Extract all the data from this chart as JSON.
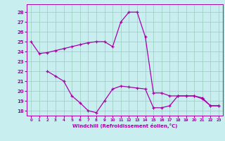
{
  "xlabel": "Windchill (Refroidissement éolien,°C)",
  "xlim": [
    -0.5,
    23.5
  ],
  "ylim": [
    17.5,
    28.8
  ],
  "yticks": [
    18,
    19,
    20,
    21,
    22,
    23,
    24,
    25,
    26,
    27,
    28
  ],
  "xticks": [
    0,
    1,
    2,
    3,
    4,
    5,
    6,
    7,
    8,
    9,
    10,
    11,
    12,
    13,
    14,
    15,
    16,
    17,
    18,
    19,
    20,
    21,
    22,
    23
  ],
  "background_color": "#c8eef0",
  "line_color": "#aa00aa",
  "grid_color": "#99ccbb",
  "series1_x": [
    0,
    1,
    2,
    3,
    4,
    5,
    6,
    7,
    8,
    9,
    10,
    11,
    12,
    13,
    14,
    15,
    16,
    17,
    18,
    19,
    20,
    21,
    22,
    23
  ],
  "series1_y": [
    25.0,
    23.8,
    23.9,
    24.1,
    24.3,
    24.5,
    24.7,
    24.9,
    25.0,
    25.0,
    24.5,
    27.0,
    28.0,
    28.0,
    25.5,
    19.8,
    19.8,
    19.5,
    19.5,
    19.5,
    19.5,
    19.2,
    18.5,
    18.5
  ],
  "series2_x": [
    2,
    3,
    4,
    5,
    6,
    7,
    8,
    9,
    10,
    11,
    12,
    13,
    14,
    15,
    16,
    17,
    18,
    19,
    20,
    21,
    22,
    23
  ],
  "series2_y": [
    22.0,
    21.5,
    21.0,
    19.5,
    18.8,
    18.0,
    17.8,
    19.0,
    20.2,
    20.5,
    20.4,
    20.3,
    20.2,
    18.3,
    18.3,
    18.5,
    19.5,
    19.5,
    19.5,
    19.3,
    18.5,
    18.5
  ]
}
